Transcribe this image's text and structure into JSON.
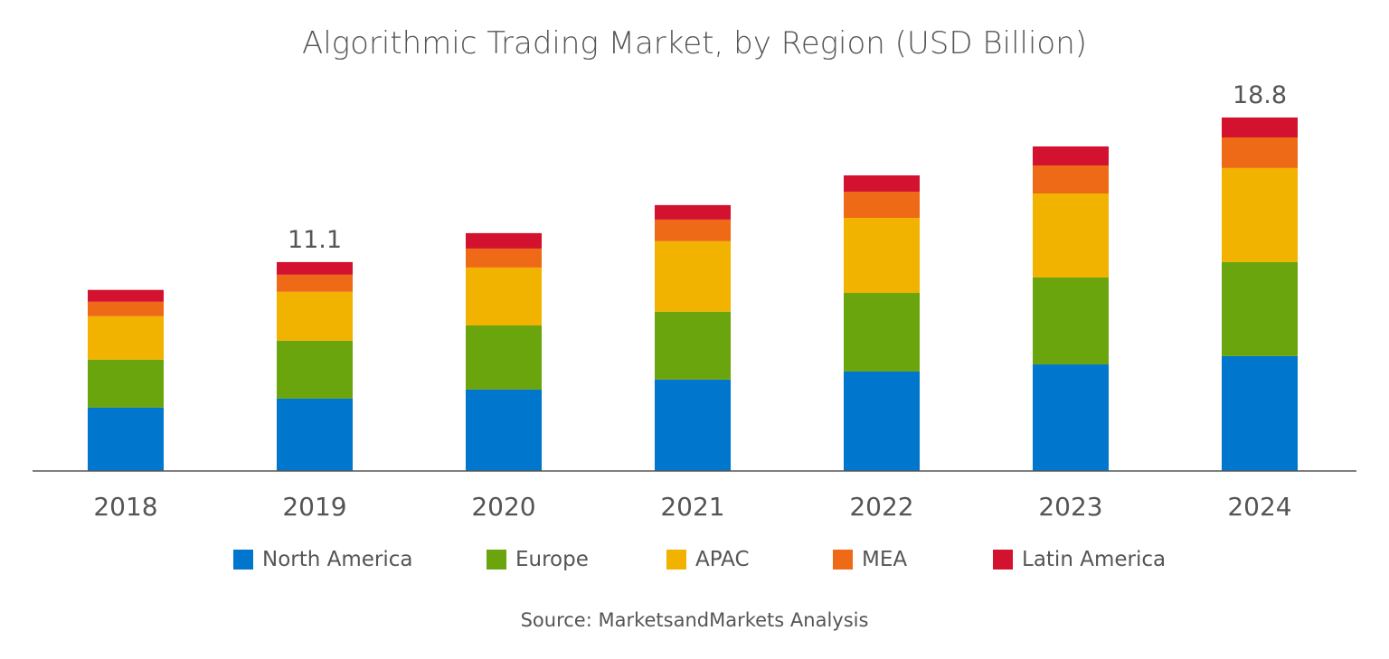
{
  "chart_data": {
    "type": "bar",
    "stacked": true,
    "title": "Algorithmic Trading Market, by Region (USD Billion)",
    "source": "Source: MarketsandMarkets Analysis",
    "xlabel": "",
    "ylabel": "",
    "ylim": [
      0,
      20
    ],
    "grid": false,
    "legend_position": "bottom",
    "categories": [
      "2018",
      "2019",
      "2020",
      "2021",
      "2022",
      "2023",
      "2024"
    ],
    "series": [
      {
        "name": "North America",
        "color": "#0077CC",
        "values": [
          3.37,
          3.85,
          4.33,
          4.86,
          5.29,
          5.67,
          6.11
        ]
      },
      {
        "name": "Europe",
        "color": "#6BA50E",
        "values": [
          2.55,
          3.08,
          3.41,
          3.61,
          4.18,
          4.62,
          5.0
        ]
      },
      {
        "name": "APAC",
        "color": "#F2B200",
        "values": [
          2.31,
          2.6,
          3.08,
          3.75,
          3.99,
          4.47,
          5.0
        ]
      },
      {
        "name": "MEA",
        "color": "#EE6A17",
        "values": [
          0.77,
          0.91,
          1.01,
          1.15,
          1.39,
          1.49,
          1.63
        ]
      },
      {
        "name": "Latin America",
        "color": "#D2122E",
        "values": [
          0.63,
          0.67,
          0.82,
          0.77,
          0.87,
          1.01,
          1.06
        ]
      }
    ],
    "data_labels": [
      {
        "category": "2019",
        "text": "11.1"
      },
      {
        "category": "2024",
        "text": "18.8"
      }
    ]
  }
}
